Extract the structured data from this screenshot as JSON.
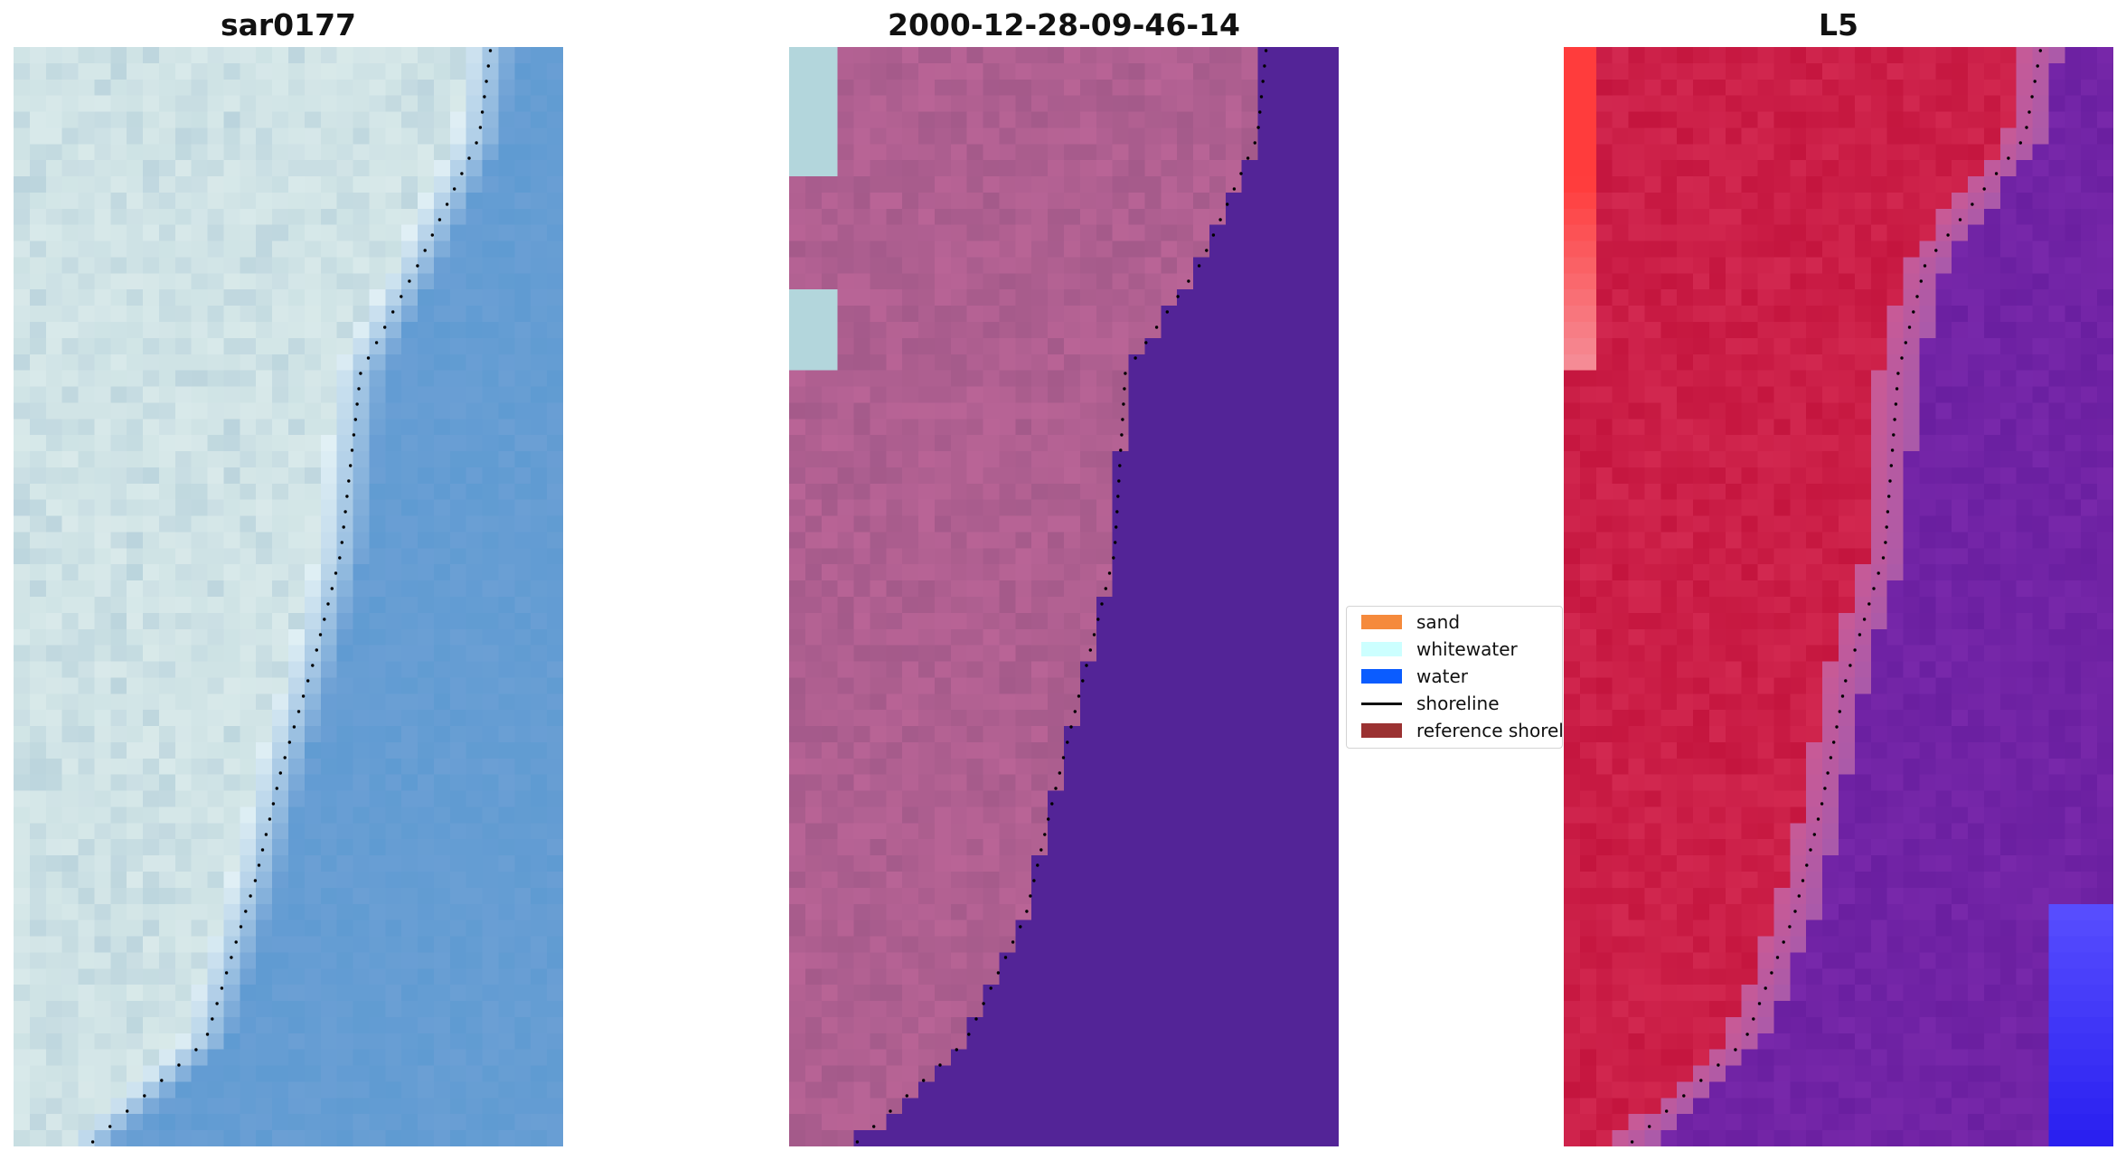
{
  "panels": [
    {
      "title": "sar0177"
    },
    {
      "title": "2000-12-28-09-46-14"
    },
    {
      "title": "L5"
    }
  ],
  "legend": {
    "items": [
      {
        "label": "sand",
        "color": "#f58a3c",
        "kind": "patch"
      },
      {
        "label": "whitewater",
        "color": "#ccffff",
        "kind": "patch"
      },
      {
        "label": "water",
        "color": "#0a5cff",
        "kind": "patch"
      },
      {
        "label": "shoreline",
        "color": "#111111",
        "kind": "line"
      },
      {
        "label": "reference shoreline",
        "color": "#9b3232",
        "kind": "patch"
      }
    ]
  },
  "colors": {
    "rgb_land": "#c4dce0",
    "rgb_water": "#6b9fd4",
    "class_land": "#a45a8a",
    "class_water": "#532497",
    "class_whitewater": "#b3d6dc",
    "class_deepwater": "#0a5cff",
    "index_land": "#c4153e",
    "index_water": "#6a1fa0",
    "shoreline_dots": "#000000"
  }
}
